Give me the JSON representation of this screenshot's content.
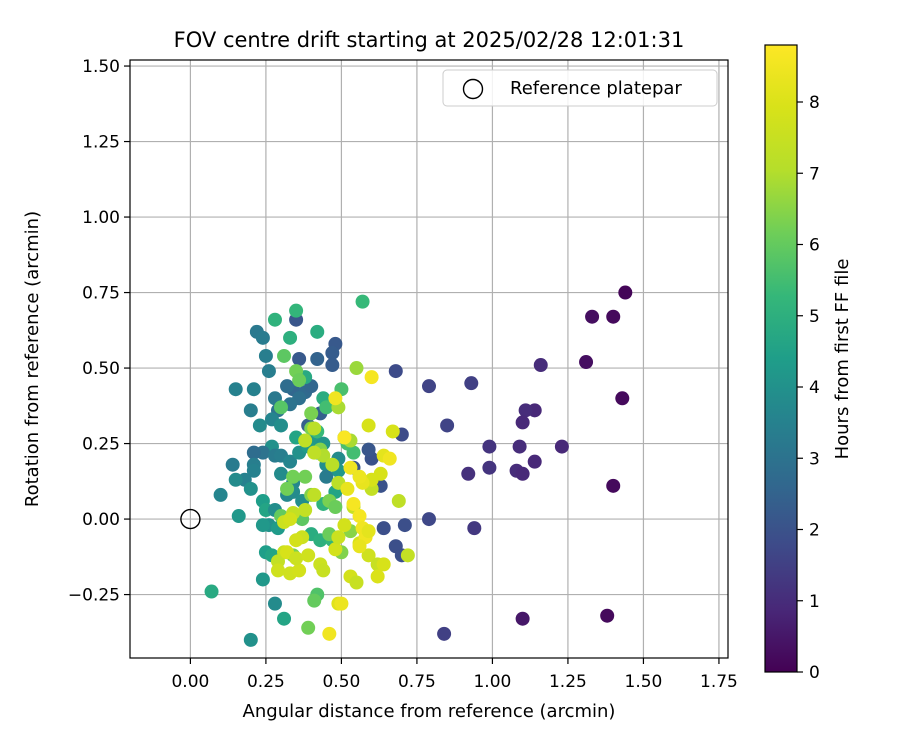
{
  "chart_data": {
    "type": "scatter",
    "title": "FOV centre drift starting at 2025/02/28 12:01:31",
    "xlabel": "Angular distance from reference (arcmin)",
    "ylabel": "Rotation from reference (arcmin)",
    "xlim": [
      -0.2,
      1.78
    ],
    "ylim": [
      -0.46,
      1.52
    ],
    "xticks": [
      0.0,
      0.25,
      0.5,
      0.75,
      1.0,
      1.25,
      1.5,
      1.75
    ],
    "xtick_labels": [
      "0.00",
      "0.25",
      "0.50",
      "0.75",
      "1.00",
      "1.25",
      "1.50",
      "1.75"
    ],
    "yticks": [
      -0.25,
      0.0,
      0.25,
      0.5,
      0.75,
      1.0,
      1.25,
      1.5
    ],
    "ytick_labels": [
      "−0.25",
      "0.00",
      "0.25",
      "0.50",
      "0.75",
      "1.00",
      "1.25",
      "1.50"
    ],
    "grid": true,
    "legend": {
      "position": "top-right",
      "entries": [
        "Reference platepar"
      ]
    },
    "reference_point": {
      "x": 0.0,
      "y": 0.0
    },
    "colorbar": {
      "label": "Hours from first FF file",
      "colormap": "viridis",
      "range": [
        0,
        8.8
      ],
      "ticks": [
        0,
        1,
        2,
        3,
        4,
        5,
        6,
        7,
        8
      ],
      "tick_labels": [
        "0",
        "1",
        "2",
        "3",
        "4",
        "5",
        "6",
        "7",
        "8"
      ]
    },
    "points": [
      [
        1.44,
        0.75,
        0.1
      ],
      [
        1.4,
        0.67,
        0.2
      ],
      [
        1.33,
        0.67,
        0.3
      ],
      [
        1.31,
        0.52,
        0.3
      ],
      [
        1.43,
        0.4,
        0.2
      ],
      [
        1.4,
        0.11,
        0.2
      ],
      [
        1.38,
        -0.32,
        0.2
      ],
      [
        1.1,
        -0.33,
        0.5
      ],
      [
        1.16,
        0.51,
        1.0
      ],
      [
        1.14,
        0.36,
        0.9
      ],
      [
        1.11,
        0.36,
        1.0
      ],
      [
        1.1,
        0.32,
        0.9
      ],
      [
        1.23,
        0.24,
        0.9
      ],
      [
        1.09,
        0.24,
        1.0
      ],
      [
        1.14,
        0.19,
        0.9
      ],
      [
        1.08,
        0.16,
        1.0
      ],
      [
        1.1,
        0.15,
        0.9
      ],
      [
        0.99,
        0.24,
        1.2
      ],
      [
        0.99,
        0.17,
        1.2
      ],
      [
        0.92,
        0.15,
        1.1
      ],
      [
        0.94,
        -0.03,
        1.3
      ],
      [
        0.84,
        -0.38,
        1.5
      ],
      [
        0.93,
        0.45,
        1.5
      ],
      [
        0.85,
        0.31,
        1.6
      ],
      [
        0.79,
        0.44,
        1.6
      ],
      [
        0.79,
        0.0,
        1.7
      ],
      [
        0.7,
        0.28,
        1.8
      ],
      [
        0.68,
        0.49,
        1.8
      ],
      [
        0.71,
        -0.02,
        1.9
      ],
      [
        0.68,
        -0.09,
        1.9
      ],
      [
        0.7,
        -0.12,
        1.9
      ],
      [
        0.64,
        -0.03,
        1.9
      ],
      [
        0.63,
        0.11,
        2.0
      ],
      [
        0.6,
        0.2,
        2.0
      ],
      [
        0.59,
        0.23,
        2.1
      ],
      [
        0.54,
        0.17,
        2.1
      ],
      [
        0.48,
        0.58,
        2.2
      ],
      [
        0.47,
        0.55,
        2.3
      ],
      [
        0.47,
        0.51,
        2.3
      ],
      [
        0.43,
        0.35,
        2.4
      ],
      [
        0.39,
        0.31,
        2.4
      ],
      [
        0.35,
        0.66,
        2.1
      ],
      [
        0.36,
        0.53,
        2.2
      ],
      [
        0.42,
        0.53,
        2.5
      ],
      [
        0.34,
        0.43,
        2.6
      ],
      [
        0.32,
        0.44,
        2.8
      ],
      [
        0.38,
        0.42,
        2.7
      ],
      [
        0.4,
        0.44,
        2.6
      ],
      [
        0.36,
        0.4,
        2.9
      ],
      [
        0.33,
        0.38,
        3.0
      ],
      [
        0.29,
        0.36,
        3.0
      ],
      [
        0.28,
        0.4,
        3.2
      ],
      [
        0.22,
        0.62,
        3.2
      ],
      [
        0.24,
        0.6,
        3.3
      ],
      [
        0.25,
        0.54,
        3.4
      ],
      [
        0.26,
        0.49,
        3.4
      ],
      [
        0.21,
        0.43,
        3.5
      ],
      [
        0.15,
        0.43,
        3.5
      ],
      [
        0.2,
        0.36,
        3.4
      ],
      [
        0.27,
        0.33,
        3.6
      ],
      [
        0.23,
        0.31,
        3.8
      ],
      [
        0.3,
        0.31,
        3.9
      ],
      [
        0.27,
        0.24,
        4.0
      ],
      [
        0.24,
        0.22,
        3.0
      ],
      [
        0.21,
        0.22,
        2.8
      ],
      [
        0.28,
        0.21,
        3.3
      ],
      [
        0.21,
        0.18,
        3.4
      ],
      [
        0.14,
        0.18,
        3.3
      ],
      [
        0.21,
        0.16,
        3.5
      ],
      [
        0.18,
        0.13,
        3.5
      ],
      [
        0.15,
        0.13,
        3.8
      ],
      [
        0.1,
        0.08,
        3.6
      ],
      [
        0.2,
        0.1,
        4.0
      ],
      [
        0.16,
        0.01,
        4.2
      ],
      [
        0.24,
        0.06,
        4.4
      ],
      [
        0.25,
        0.03,
        4.6
      ],
      [
        0.3,
        0.21,
        3.4
      ],
      [
        0.33,
        0.19,
        3.6
      ],
      [
        0.3,
        0.15,
        3.8
      ],
      [
        0.34,
        0.12,
        3.6
      ],
      [
        0.32,
        0.08,
        3.7
      ],
      [
        0.34,
        0.09,
        3.8
      ],
      [
        0.37,
        0.06,
        3.9
      ],
      [
        0.28,
        0.03,
        3.9
      ],
      [
        0.26,
        -0.02,
        4.0
      ],
      [
        0.24,
        -0.02,
        4.2
      ],
      [
        0.29,
        -0.03,
        4.3
      ],
      [
        0.25,
        -0.11,
        4.4
      ],
      [
        0.27,
        -0.12,
        4.6
      ],
      [
        0.24,
        -0.2,
        4.2
      ],
      [
        0.28,
        -0.28,
        3.8
      ],
      [
        0.31,
        -0.33,
        4.6
      ],
      [
        0.2,
        -0.4,
        4.0
      ],
      [
        0.07,
        -0.24,
        4.8
      ],
      [
        0.36,
        0.22,
        4.0
      ],
      [
        0.35,
        0.27,
        4.6
      ],
      [
        0.4,
        0.26,
        4.4
      ],
      [
        0.41,
        0.27,
        4.2
      ],
      [
        0.39,
        0.24,
        4.3
      ],
      [
        0.42,
        0.22,
        4.6
      ],
      [
        0.44,
        0.25,
        4.1
      ],
      [
        0.45,
        0.18,
        3.9
      ],
      [
        0.49,
        0.16,
        4.2
      ],
      [
        0.45,
        0.14,
        3.3
      ],
      [
        0.48,
        0.09,
        4.6
      ],
      [
        0.49,
        0.2,
        3.8
      ],
      [
        0.38,
        0.47,
        4.8
      ],
      [
        0.42,
        0.62,
        4.9
      ],
      [
        0.33,
        0.6,
        5.0
      ],
      [
        0.28,
        0.66,
        5.1
      ],
      [
        0.35,
        0.69,
        5.2
      ],
      [
        0.57,
        0.72,
        5.3
      ],
      [
        0.44,
        0.4,
        4.9
      ],
      [
        0.5,
        0.43,
        5.6
      ],
      [
        0.45,
        0.37,
        5.5
      ],
      [
        0.42,
        0.29,
        5.3
      ],
      [
        0.44,
        0.05,
        5.1
      ],
      [
        0.4,
        -0.05,
        4.9
      ],
      [
        0.43,
        -0.07,
        5.0
      ],
      [
        0.47,
        -0.07,
        5.2
      ],
      [
        0.52,
        0.25,
        5.6
      ],
      [
        0.54,
        0.22,
        5.5
      ],
      [
        0.51,
        0.27,
        5.0
      ],
      [
        0.3,
        0.37,
        5.8
      ],
      [
        0.31,
        0.54,
        5.9
      ],
      [
        0.35,
        0.49,
        6.2
      ],
      [
        0.36,
        0.46,
        6.1
      ],
      [
        0.4,
        0.35,
        6.3
      ],
      [
        0.4,
        0.3,
        6.3
      ],
      [
        0.43,
        0.23,
        6.4
      ],
      [
        0.42,
        -0.25,
        5.7
      ],
      [
        0.41,
        -0.27,
        6.0
      ],
      [
        0.39,
        -0.36,
        6.2
      ],
      [
        0.34,
        -0.12,
        6.3
      ],
      [
        0.32,
        0.1,
        6.2
      ],
      [
        0.34,
        0.14,
        6.2
      ],
      [
        0.38,
        0.14,
        6.2
      ],
      [
        0.3,
        0.01,
        6.0
      ],
      [
        0.37,
        0.0,
        5.9
      ],
      [
        0.4,
        0.08,
        6.4
      ],
      [
        0.46,
        0.06,
        6.3
      ],
      [
        0.48,
        0.04,
        6.1
      ],
      [
        0.46,
        -0.05,
        6.1
      ],
      [
        0.5,
        -0.11,
        6.4
      ],
      [
        0.53,
        -0.04,
        6.5
      ],
      [
        0.55,
        0.5,
        6.7
      ],
      [
        0.49,
        0.37,
        6.9
      ],
      [
        0.53,
        0.26,
        6.9
      ],
      [
        0.44,
        0.21,
        7.0
      ],
      [
        0.41,
        0.3,
        7.2
      ],
      [
        0.38,
        0.26,
        7.3
      ],
      [
        0.41,
        0.22,
        7.3
      ],
      [
        0.47,
        0.18,
        7.2
      ],
      [
        0.49,
        0.12,
        7.2
      ],
      [
        0.41,
        0.08,
        7.3
      ],
      [
        0.38,
        0.03,
        7.4
      ],
      [
        0.34,
        0.02,
        7.4
      ],
      [
        0.31,
        -0.01,
        7.6
      ],
      [
        0.33,
        0.0,
        7.8
      ],
      [
        0.37,
        -0.06,
        7.6
      ],
      [
        0.31,
        -0.11,
        7.5
      ],
      [
        0.29,
        -0.14,
        7.4
      ],
      [
        0.29,
        -0.17,
        7.7
      ],
      [
        0.33,
        -0.18,
        7.7
      ],
      [
        0.36,
        -0.17,
        7.8
      ],
      [
        0.35,
        -0.07,
        7.8
      ],
      [
        0.32,
        -0.11,
        7.9
      ],
      [
        0.35,
        -0.13,
        7.6
      ],
      [
        0.39,
        -0.12,
        7.7
      ],
      [
        0.43,
        -0.15,
        7.6
      ],
      [
        0.44,
        -0.17,
        7.5
      ],
      [
        0.48,
        -0.1,
        7.8
      ],
      [
        0.49,
        -0.06,
        7.6
      ],
      [
        0.51,
        -0.02,
        7.8
      ],
      [
        0.54,
        0.04,
        7.5
      ],
      [
        0.56,
        -0.08,
        7.9
      ],
      [
        0.59,
        -0.12,
        7.7
      ],
      [
        0.62,
        -0.15,
        7.5
      ],
      [
        0.64,
        -0.15,
        7.9
      ],
      [
        0.62,
        -0.19,
        8.0
      ],
      [
        0.53,
        -0.19,
        7.8
      ],
      [
        0.55,
        -0.21,
        7.5
      ],
      [
        0.49,
        -0.28,
        8.1
      ],
      [
        0.5,
        -0.28,
        8.4
      ],
      [
        0.46,
        -0.38,
        8.5
      ],
      [
        0.72,
        -0.12,
        7.4
      ],
      [
        0.69,
        0.06,
        7.3
      ],
      [
        0.6,
        0.1,
        7.4
      ],
      [
        0.63,
        0.15,
        7.9
      ],
      [
        0.6,
        0.13,
        7.9
      ],
      [
        0.57,
        0.12,
        8.3
      ],
      [
        0.53,
        0.17,
        8.5
      ],
      [
        0.56,
        0.14,
        8.4
      ],
      [
        0.52,
        0.1,
        8.3
      ],
      [
        0.54,
        0.05,
        8.6
      ],
      [
        0.56,
        0.01,
        8.6
      ],
      [
        0.57,
        -0.03,
        8.5
      ],
      [
        0.58,
        -0.06,
        8.5
      ],
      [
        0.59,
        0.31,
        7.9
      ],
      [
        0.67,
        0.29,
        7.9
      ],
      [
        0.64,
        0.21,
        8.2
      ],
      [
        0.66,
        0.2,
        8.5
      ],
      [
        0.48,
        0.4,
        8.5
      ],
      [
        0.51,
        0.27,
        8.7
      ],
      [
        0.6,
        0.47,
        8.6
      ],
      [
        0.56,
        -0.09,
        8.3
      ],
      [
        0.59,
        -0.04,
        8.2
      ]
    ]
  }
}
